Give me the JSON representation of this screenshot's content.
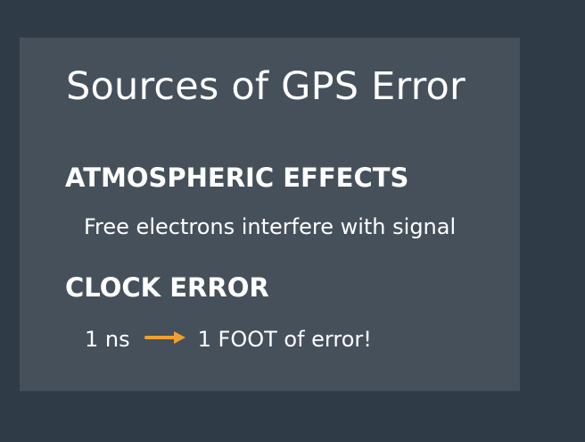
{
  "slide": {
    "title": "Sources of GPS Error",
    "section1": {
      "heading": "ATMOSPHERIC EFFECTS",
      "detail": "Free electrons interfere with signal"
    },
    "section2": {
      "heading": "CLOCK ERROR",
      "detail_left": "1 ns",
      "detail_right": "1 FOOT of error!",
      "arrow_icon": "arrow-right-icon",
      "arrow_color": "#f0a030"
    },
    "colors": {
      "background": "#2f3b47",
      "slide_panel": "#46505b",
      "text": "#ffffff"
    }
  }
}
